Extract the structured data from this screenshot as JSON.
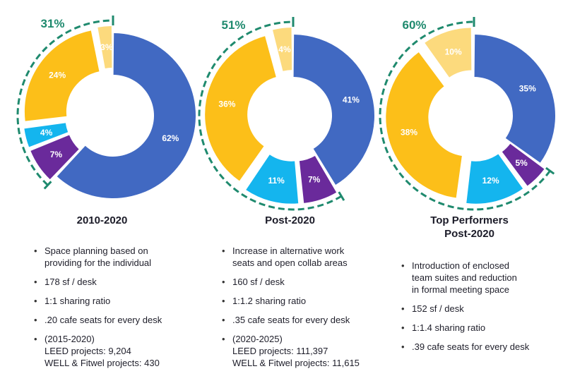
{
  "colors": {
    "blue": "#4169c2",
    "yellow": "#fcbf19",
    "light_yellow": "#fcda7d",
    "cyan": "#14b5ee",
    "purple": "#6a2a9b",
    "green": "#1f8a6e"
  },
  "chart_data": [
    {
      "type": "pie",
      "title": "2010-2020",
      "slices": [
        {
          "label": "62%",
          "value": 62,
          "color": "#4169c2"
        },
        {
          "label": "7%",
          "value": 7,
          "color": "#6a2a9b"
        },
        {
          "label": "4%",
          "value": 4,
          "color": "#14b5ee"
        },
        {
          "label": "24%",
          "value": 24,
          "color": "#fcbf19"
        },
        {
          "label": "3%",
          "value": 3,
          "color": "#fcda7d"
        }
      ],
      "callout": "31%",
      "bullets": [
        [
          "Space planning based on",
          "providing for the individual"
        ],
        [
          "178 sf / desk"
        ],
        [
          "1:1 sharing ratio"
        ],
        [
          ".20 cafe seats for every desk"
        ],
        [
          "(2015-2020)",
          "LEED projects: 9,204",
          "WELL & Fitwel projects: 430"
        ]
      ]
    },
    {
      "type": "pie",
      "title": "Post-2020",
      "slices": [
        {
          "label": "41%",
          "value": 41,
          "color": "#4169c2"
        },
        {
          "label": "7%",
          "value": 7,
          "color": "#6a2a9b"
        },
        {
          "label": "11%",
          "value": 11,
          "color": "#14b5ee"
        },
        {
          "label": "36%",
          "value": 36,
          "color": "#fcbf19"
        },
        {
          "label": "4%",
          "value": 4,
          "color": "#fcda7d"
        }
      ],
      "callout": "51%",
      "bullets": [
        [
          "Increase in alternative work",
          "seats and open collab areas"
        ],
        [
          "160 sf / desk"
        ],
        [
          "1:1.2 sharing ratio"
        ],
        [
          ".35 cafe seats for every desk"
        ],
        [
          "(2020-2025)",
          "LEED projects: 111,397",
          "WELL & Fitwel projects: 11,615"
        ]
      ]
    },
    {
      "type": "pie",
      "title": "Top Performers",
      "subtitle": "Post-2020",
      "slices": [
        {
          "label": "35%",
          "value": 35,
          "color": "#4169c2"
        },
        {
          "label": "5%",
          "value": 5,
          "color": "#6a2a9b"
        },
        {
          "label": "12%",
          "value": 12,
          "color": "#14b5ee"
        },
        {
          "label": "38%",
          "value": 38,
          "color": "#fcbf19"
        },
        {
          "label": "10%",
          "value": 10,
          "color": "#fcda7d"
        }
      ],
      "callout": "60%",
      "bullets": [
        [
          "Introduction of enclosed",
          "team suites and reduction",
          "in formal meeting space"
        ],
        [
          "152 sf / desk"
        ],
        [
          "1:1.4 sharing ratio"
        ],
        [
          ".39 cafe seats for every desk"
        ]
      ]
    }
  ]
}
